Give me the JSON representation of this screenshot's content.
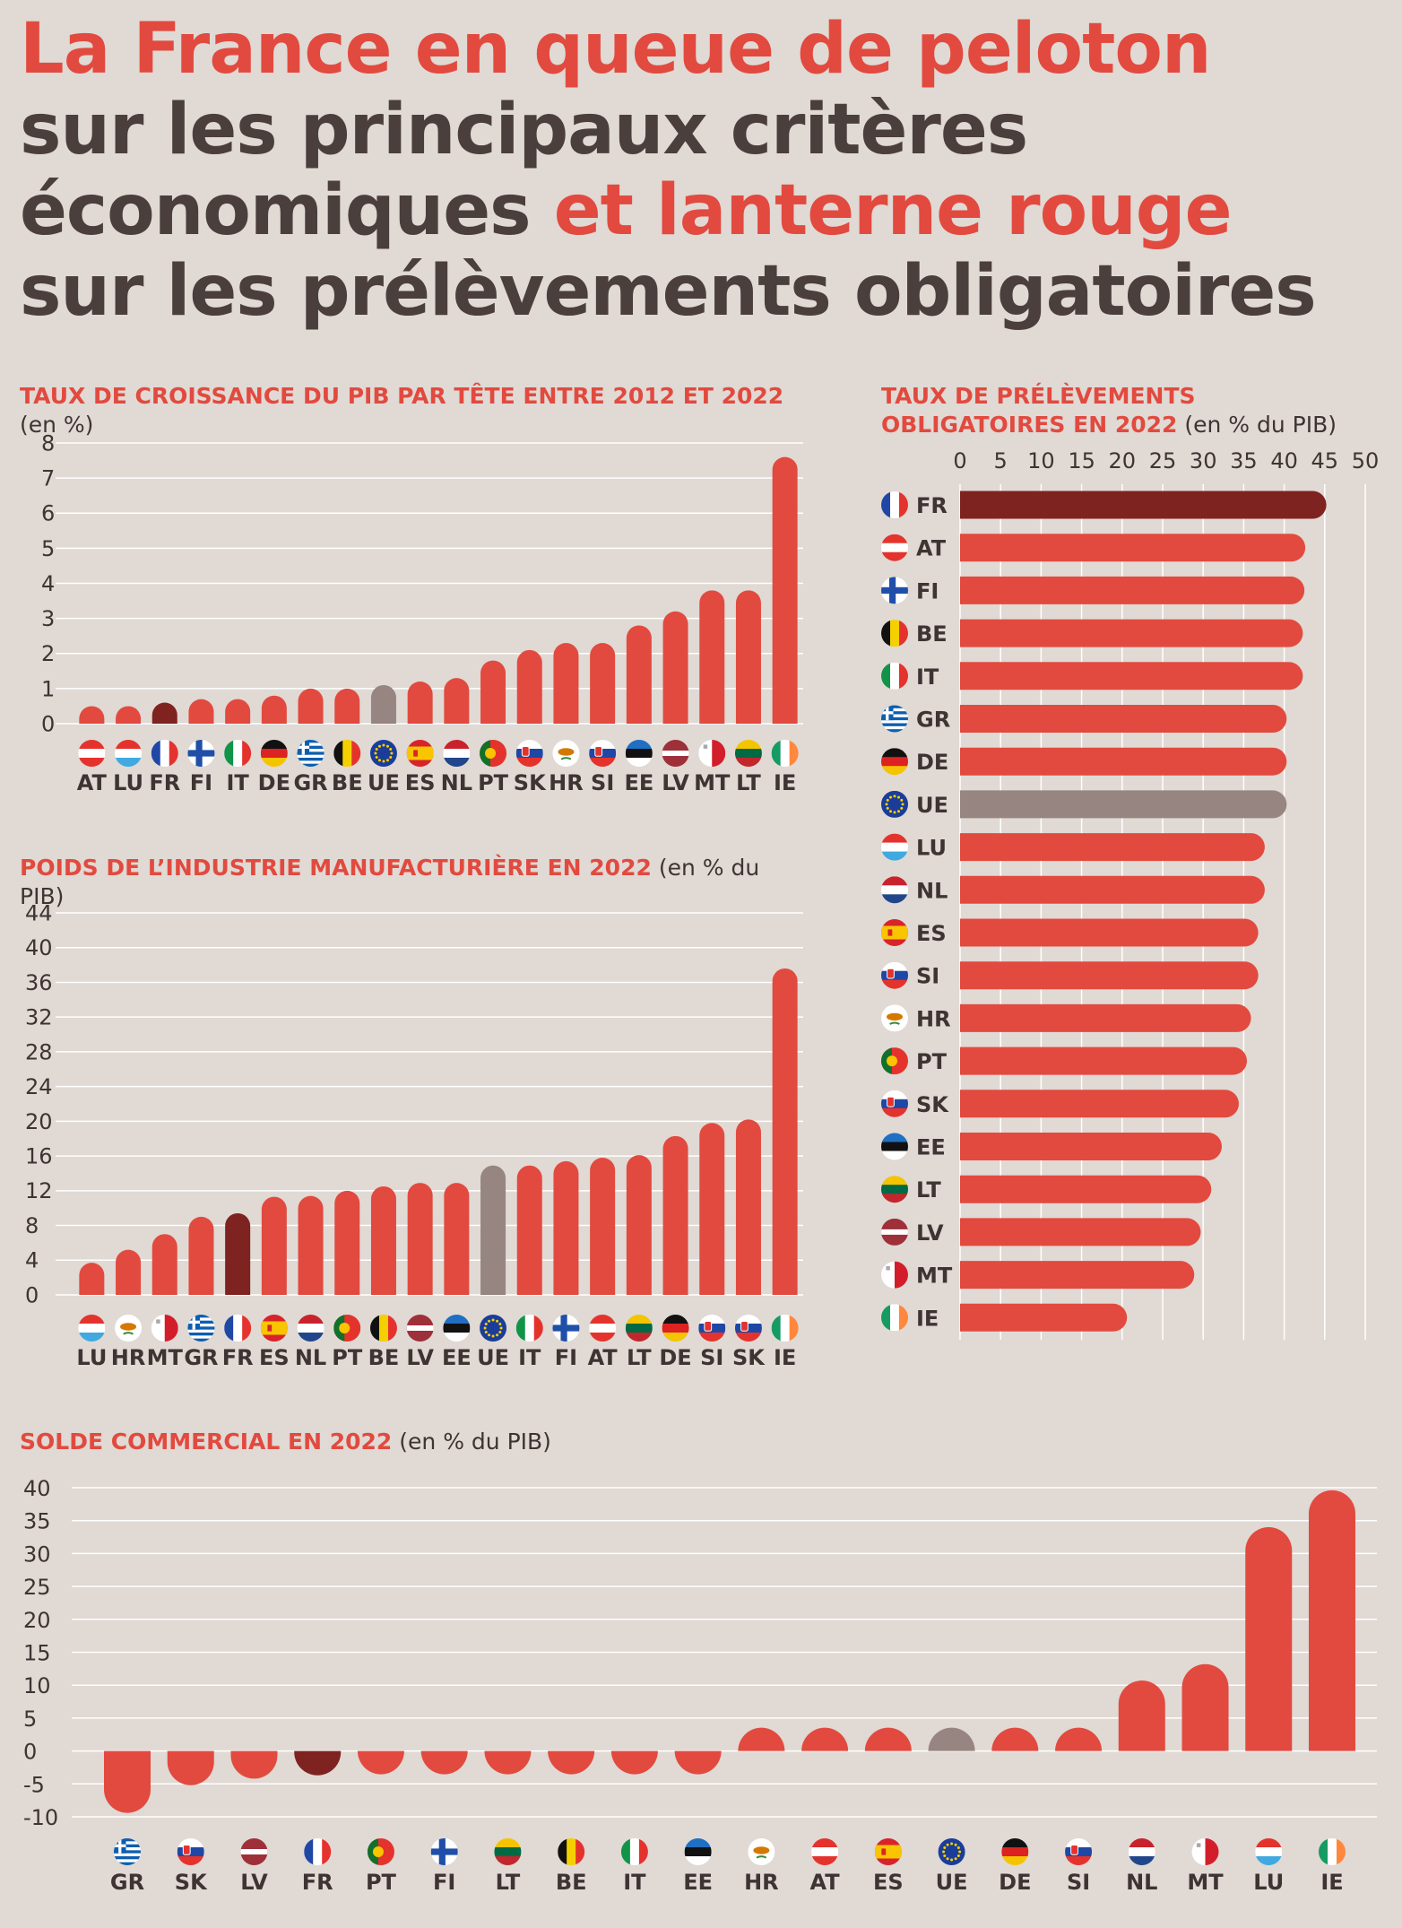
{
  "headline": {
    "part1": "La France en queue de peloton",
    "part2": "sur les principaux critères économiques",
    "part3": "et lanterne rouge",
    "part4": "sur les prélèvements obligatoires"
  },
  "colors": {
    "bar": "#e24a3f",
    "france": "#7f2320",
    "eu": "#968580",
    "grid": "#ffffff",
    "text": "#3d3433",
    "background": "#e0d9d4"
  },
  "chart_data": [
    {
      "id": "growth",
      "type": "bar",
      "title": "TAUX DE CROISSANCE DU PIB PAR TÊTE ENTRE 2012 ET 2022",
      "unit": "(en %)",
      "categories": [
        "AT",
        "LU",
        "FR",
        "FI",
        "IT",
        "DE",
        "GR",
        "BE",
        "UE",
        "ES",
        "NL",
        "PT",
        "SK",
        "HR",
        "SI",
        "EE",
        "LV",
        "MT",
        "LT",
        "IE"
      ],
      "values": [
        0.5,
        0.5,
        0.6,
        0.7,
        0.7,
        0.8,
        1.0,
        1.0,
        1.1,
        1.2,
        1.3,
        1.8,
        2.1,
        2.3,
        2.3,
        2.8,
        3.2,
        3.8,
        3.8,
        7.6
      ],
      "ylim": [
        0,
        8
      ],
      "yticks": [
        "0",
        "1",
        "2",
        "3",
        "4",
        "5",
        "6",
        "7",
        "8"
      ],
      "grid": true
    },
    {
      "id": "industry",
      "type": "bar",
      "title": "POIDS DE L’INDUSTRIE MANUFACTURIÈRE EN 2022",
      "unit": "(en % du PIB)",
      "categories": [
        "LU",
        "HR",
        "MT",
        "GR",
        "FR",
        "ES",
        "NL",
        "PT",
        "BE",
        "LV",
        "EE",
        "UE",
        "IT",
        "FI",
        "AT",
        "LT",
        "DE",
        "SI",
        "SK",
        "IE"
      ],
      "values": [
        3.7,
        5.2,
        7.0,
        9.0,
        9.4,
        11.3,
        11.4,
        12.0,
        12.5,
        12.9,
        12.9,
        14.9,
        14.9,
        15.4,
        15.8,
        16.1,
        18.3,
        19.8,
        20.2,
        37.6
      ],
      "ylim": [
        0,
        44
      ],
      "yticks": [
        "0",
        "4",
        "8",
        "12",
        "16",
        "20",
        "24",
        "28",
        "32",
        "36",
        "40",
        "44"
      ],
      "grid": true
    },
    {
      "id": "taxes",
      "type": "bar",
      "orientation": "horizontal",
      "title": "TAUX DE PRÉLÈVEMENTS OBLIGATOIRES EN 2022",
      "unit": "(en % du PIB)",
      "categories": [
        "FR",
        "AT",
        "FI",
        "BE",
        "IT",
        "GR",
        "DE",
        "UE",
        "LU",
        "NL",
        "ES",
        "SI",
        "HR",
        "PT",
        "SK",
        "EE",
        "LT",
        "LV",
        "MT",
        "IE"
      ],
      "values": [
        45.2,
        42.6,
        42.5,
        42.3,
        42.3,
        40.3,
        40.3,
        40.3,
        37.6,
        37.6,
        36.8,
        36.8,
        35.9,
        35.4,
        34.4,
        32.3,
        31.0,
        29.7,
        28.9,
        20.6
      ],
      "xlim": [
        0,
        50
      ],
      "xticks": [
        "0",
        "5",
        "10",
        "15",
        "20",
        "25",
        "30",
        "35",
        "40",
        "45",
        "50"
      ],
      "grid": true
    },
    {
      "id": "trade",
      "type": "bar",
      "title": "SOLDE COMMERCIAL EN 2022",
      "unit": "(en % du PIB)",
      "categories": [
        "GR",
        "SK",
        "LV",
        "FR",
        "PT",
        "FI",
        "LT",
        "BE",
        "IT",
        "EE",
        "HR",
        "AT",
        "ES",
        "UE",
        "DE",
        "SI",
        "NL",
        "MT",
        "LU",
        "IE"
      ],
      "values": [
        -9.4,
        -5.2,
        -4.2,
        -3.7,
        -2.6,
        -2.3,
        -2.3,
        -1.8,
        -1.6,
        -0.5,
        0.3,
        0.4,
        1.0,
        1.7,
        1.8,
        2.1,
        10.7,
        13.2,
        34.0,
        39.6
      ],
      "ylim": [
        -10,
        40
      ],
      "yticks": [
        "-10",
        "-5",
        "0",
        "5",
        "10",
        "15",
        "20",
        "25",
        "30",
        "35",
        "40"
      ],
      "grid": true
    }
  ],
  "flags": {
    "FR": {
      "type": "v",
      "c": [
        "#1f47a6",
        "#ffffff",
        "#e4332d"
      ]
    },
    "AT": {
      "type": "h",
      "c": [
        "#e4332d",
        "#ffffff",
        "#e4332d"
      ]
    },
    "LU": {
      "type": "h",
      "c": [
        "#e4332d",
        "#ffffff",
        "#3fa9e0"
      ]
    },
    "NL": {
      "type": "h",
      "c": [
        "#c8232c",
        "#ffffff",
        "#21468b"
      ]
    },
    "DE": {
      "type": "h",
      "c": [
        "#111111",
        "#dd2222",
        "#f5c400"
      ]
    },
    "LT": {
      "type": "h",
      "c": [
        "#f5c400",
        "#006a44",
        "#c1272d"
      ]
    },
    "EE": {
      "type": "h",
      "c": [
        "#1f6fc2",
        "#111111",
        "#ffffff"
      ]
    },
    "IT": {
      "type": "v",
      "c": [
        "#119448",
        "#ffffff",
        "#e4332d"
      ]
    },
    "IE": {
      "type": "v",
      "c": [
        "#169b62",
        "#ffffff",
        "#ff883e"
      ]
    },
    "BE": {
      "type": "v",
      "c": [
        "#111111",
        "#f5d000",
        "#e4332d"
      ]
    },
    "FI": {
      "type": "nordic",
      "c": [
        "#ffffff",
        "#1f4fa8"
      ]
    },
    "GR": {
      "type": "stripes",
      "c": [
        "#0d5eaf",
        "#ffffff"
      ]
    },
    "LV": {
      "type": "lv",
      "c": [
        "#9e3039",
        "#ffffff"
      ]
    },
    "SI": {
      "type": "h",
      "c": [
        "#ffffff",
        "#1f47a6",
        "#e4332d"
      ],
      "emblem": true
    },
    "SK": {
      "type": "h",
      "c": [
        "#ffffff",
        "#1f47a6",
        "#e4332d"
      ],
      "emblem": true
    },
    "HR": {
      "type": "h",
      "c": [
        "#e4332d",
        "#ffffff",
        "#1f47a6"
      ],
      "emblem": true
    },
    "ES": {
      "type": "es",
      "c": [
        "#d8232a",
        "#f9c400"
      ]
    },
    "PT": {
      "type": "pt",
      "c": [
        "#11702c",
        "#e4332d"
      ]
    },
    "MT": {
      "type": "v2",
      "c": [
        "#ffffff",
        "#d21e2b"
      ]
    },
    "CY": {
      "type": "cy",
      "c": [
        "#ffffff",
        "#d57800"
      ]
    },
    "UE": {
      "type": "eu",
      "c": [
        "#1b3d99",
        "#f7d000"
      ]
    }
  },
  "flag_alias": {
    "HR_cyprus_style": "CY"
  }
}
